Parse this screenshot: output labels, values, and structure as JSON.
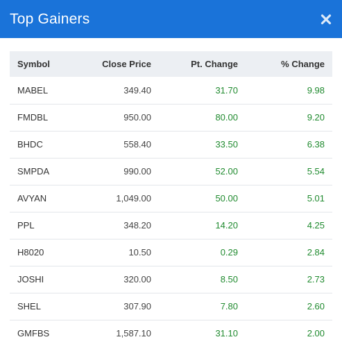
{
  "modal": {
    "title": "Top Gainers",
    "close_icon": "close-icon"
  },
  "table": {
    "headers": {
      "symbol": "Symbol",
      "close_price": "Close Price",
      "pt_change": "Pt. Change",
      "pct_change": "% Change"
    },
    "rows": [
      {
        "symbol": "MABEL",
        "close_price": "349.40",
        "pt_change": "31.70",
        "pct_change": "9.98"
      },
      {
        "symbol": "FMDBL",
        "close_price": "950.00",
        "pt_change": "80.00",
        "pct_change": "9.20"
      },
      {
        "symbol": "BHDC",
        "close_price": "558.40",
        "pt_change": "33.50",
        "pct_change": "6.38"
      },
      {
        "symbol": "SMPDA",
        "close_price": "990.00",
        "pt_change": "52.00",
        "pct_change": "5.54"
      },
      {
        "symbol": "AVYAN",
        "close_price": "1,049.00",
        "pt_change": "50.00",
        "pct_change": "5.01"
      },
      {
        "symbol": "PPL",
        "close_price": "348.20",
        "pt_change": "14.20",
        "pct_change": "4.25"
      },
      {
        "symbol": "H8020",
        "close_price": "10.50",
        "pt_change": "0.29",
        "pct_change": "2.84"
      },
      {
        "symbol": "JOSHI",
        "close_price": "320.00",
        "pt_change": "8.50",
        "pct_change": "2.73"
      },
      {
        "symbol": "SHEL",
        "close_price": "307.90",
        "pt_change": "7.80",
        "pct_change": "2.60"
      },
      {
        "symbol": "GMFBS",
        "close_price": "1,587.10",
        "pt_change": "31.10",
        "pct_change": "2.00"
      }
    ]
  },
  "colors": {
    "header_bg": "#1a73d9",
    "positive": "#1f8a2e",
    "table_head_bg": "#eceff3"
  }
}
